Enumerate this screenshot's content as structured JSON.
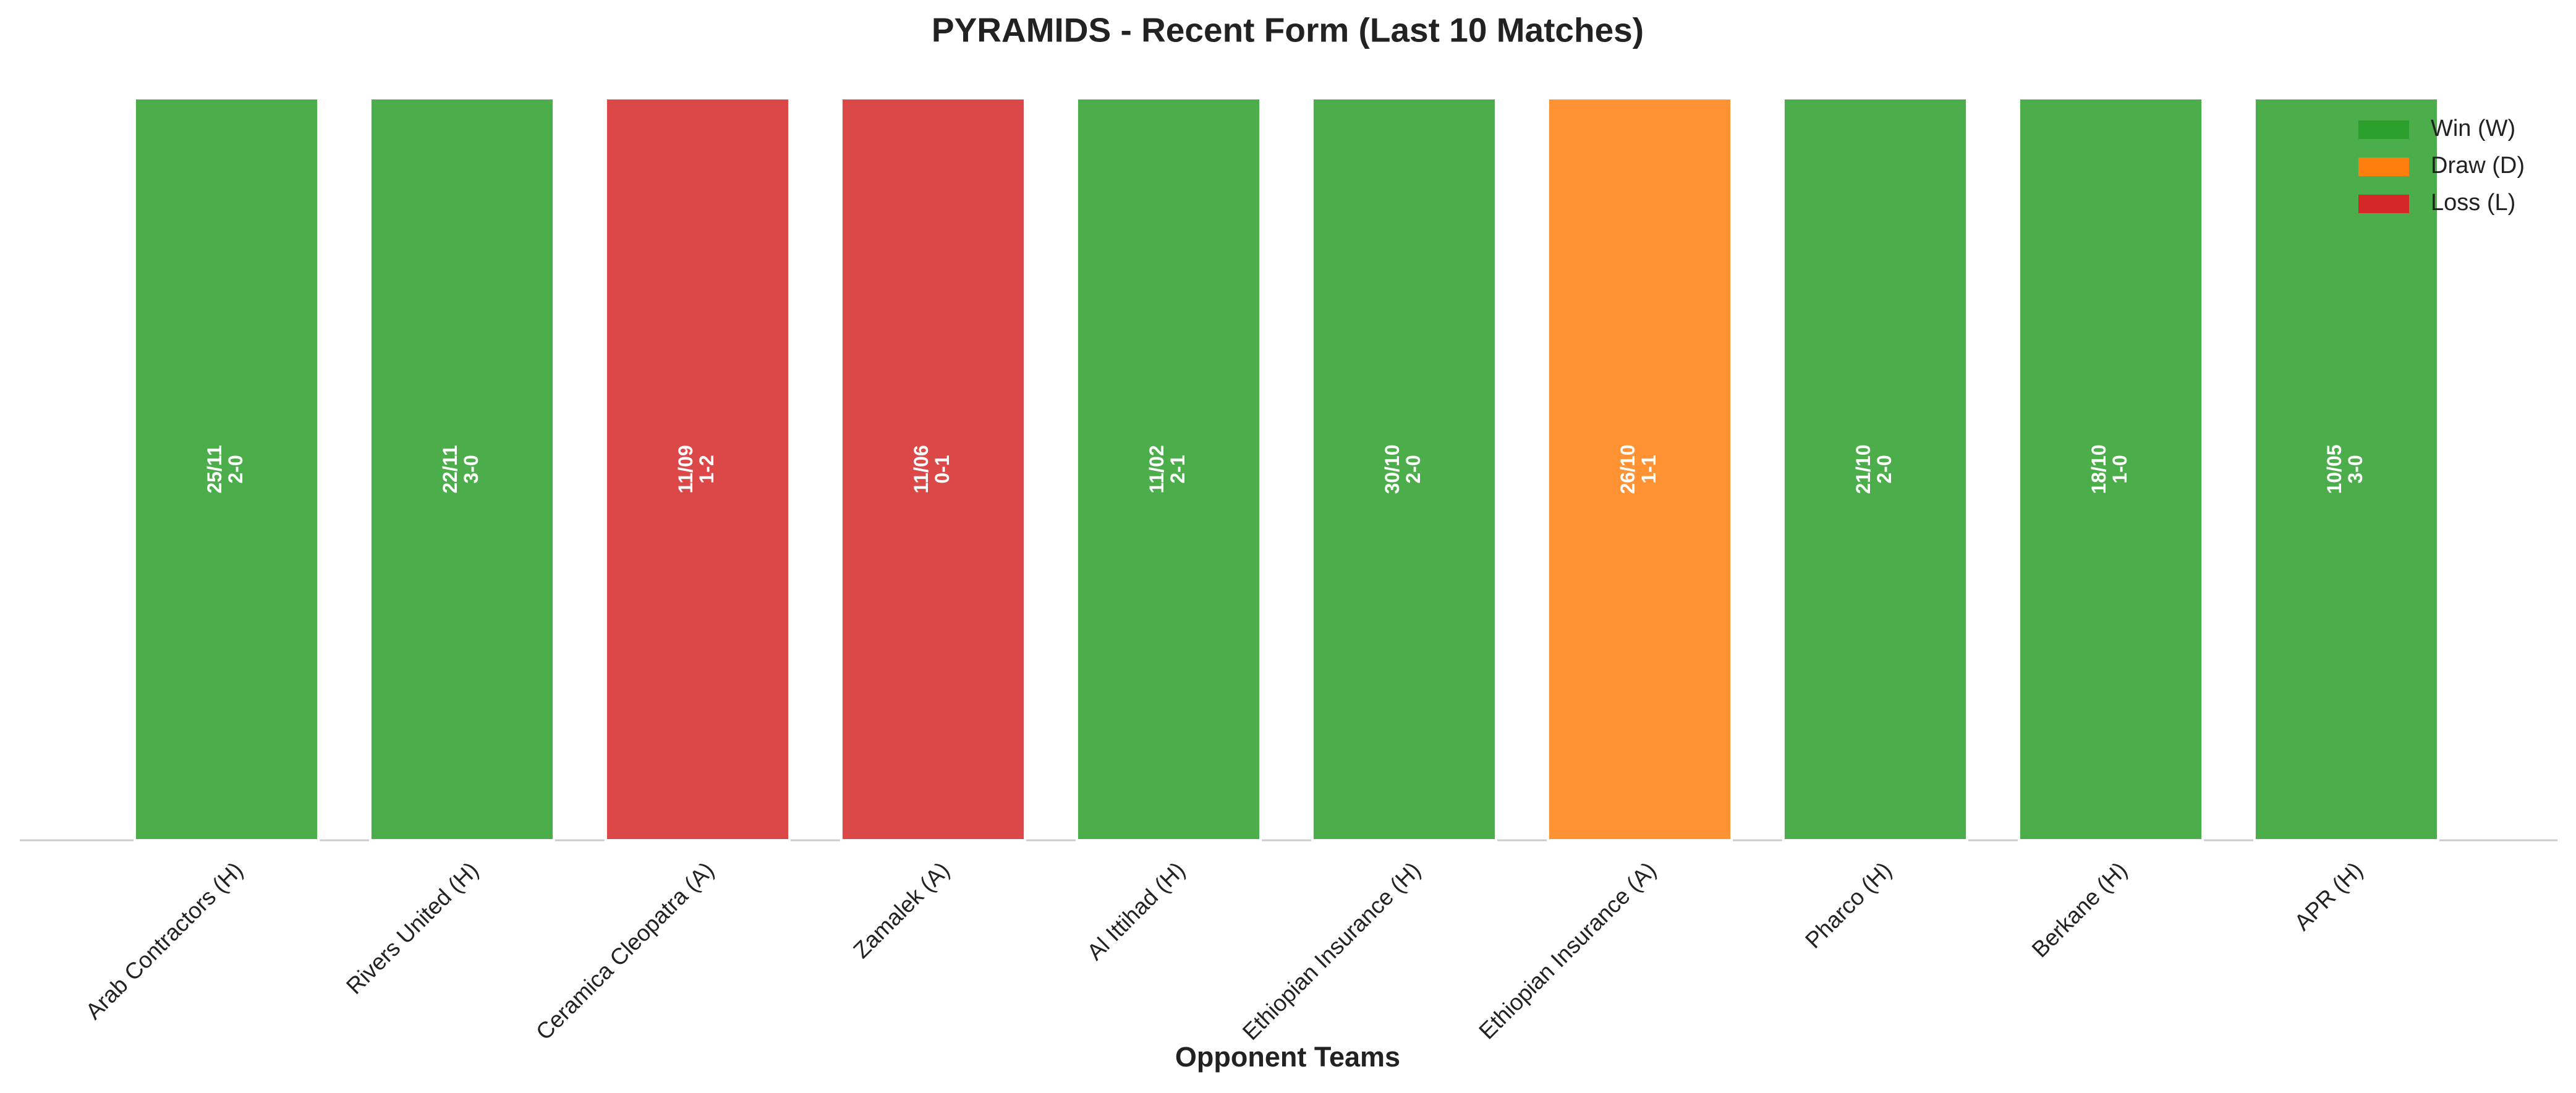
{
  "chart_data": {
    "type": "bar",
    "title": "PYRAMIDS - Recent Form (Last 10 Matches)",
    "x_label": "Opponent Teams",
    "categories": [
      "Arab Contractors (H)",
      "Rivers United (H)",
      "Ceramica Cleopatra (A)",
      "Zamalek (A)",
      "Al Ittihad (H)",
      "Ethiopian Insurance (H)",
      "Ethiopian Insurance (A)",
      "Pharco (H)",
      "Berkane (H)",
      "APR (H)"
    ],
    "values": [
      1,
      1,
      1,
      1,
      1,
      1,
      1,
      1,
      1,
      1
    ],
    "dates": [
      "25/11",
      "22/11",
      "11/09",
      "11/06",
      "11/02",
      "30/10",
      "26/10",
      "21/10",
      "18/10",
      "10/05"
    ],
    "scores": [
      "2-0",
      "3-0",
      "1-2",
      "0-1",
      "2-1",
      "2-0",
      "1-1",
      "2-0",
      "1-0",
      "3-0"
    ],
    "colors": [
      "#2ca02c",
      "#2ca02c",
      "#d62728",
      "#d62728",
      "#2ca02c",
      "#2ca02c",
      "#ff7f0e",
      "#2ca02c",
      "#2ca02c",
      "#2ca02c"
    ],
    "ylim": [
      0,
      1
    ],
    "legend": [
      {
        "name": "Win (W)",
        "color": "#2ca02c"
      },
      {
        "name": "Draw (D)",
        "color": "#ff7f0e"
      },
      {
        "name": "Loss (L)",
        "color": "#d62728"
      }
    ],
    "legend_position": "upper right"
  }
}
